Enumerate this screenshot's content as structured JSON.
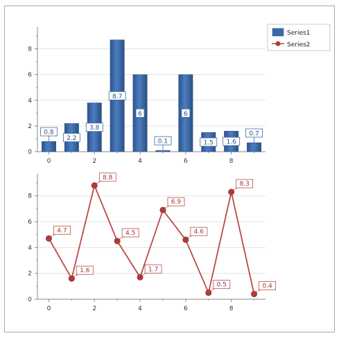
{
  "chart_data": [
    {
      "type": "bar",
      "x": [
        0,
        1,
        2,
        3,
        4,
        5,
        6,
        7,
        8,
        9
      ],
      "series": [
        {
          "name": "Series1",
          "values": [
            0.8,
            2.2,
            3.8,
            8.7,
            6,
            0.1,
            6,
            1.5,
            1.6,
            0.7
          ],
          "labels": [
            "0.8",
            "2.2",
            "3.8",
            "8.7",
            "6",
            "0.1",
            "6",
            "1.5",
            "1.6",
            "0.7"
          ]
        }
      ],
      "xticks": [
        "0",
        "2",
        "4",
        "6",
        "8"
      ],
      "yticks": [
        "0",
        "2",
        "4",
        "6",
        "8"
      ],
      "ylim": [
        0,
        9.7
      ],
      "xlim": [
        -0.5,
        9.5
      ],
      "grid": true,
      "legend": "top-right",
      "colors": {
        "bar": "#3d69a9",
        "bar_dark": "#2a4f85",
        "label_border": "#3d69a9"
      }
    },
    {
      "type": "line",
      "x": [
        0,
        1,
        2,
        3,
        4,
        5,
        6,
        7,
        8,
        9
      ],
      "series": [
        {
          "name": "Series2",
          "values": [
            4.7,
            1.6,
            8.8,
            4.5,
            1.7,
            6.9,
            4.6,
            0.5,
            8.3,
            0.4
          ],
          "labels": [
            "4.7",
            "1.6",
            "8.8",
            "4.5",
            "1.7",
            "6.9",
            "4.6",
            "0.5",
            "8.3",
            "0.4"
          ]
        }
      ],
      "xticks": [
        "0",
        "2",
        "4",
        "6",
        "8"
      ],
      "yticks": [
        "0",
        "2",
        "4",
        "6",
        "8"
      ],
      "ylim": [
        0,
        9.7
      ],
      "xlim": [
        -0.5,
        9.5
      ],
      "grid": true,
      "markers": true,
      "colors": {
        "line": "#b94a48",
        "marker": "#b03a37",
        "label_border": "#b94a48"
      }
    }
  ],
  "legend": {
    "items": [
      {
        "label": "Series1",
        "kind": "bar",
        "color": "#3d69a9"
      },
      {
        "label": "Series2",
        "kind": "line",
        "color": "#b94a48"
      }
    ]
  }
}
